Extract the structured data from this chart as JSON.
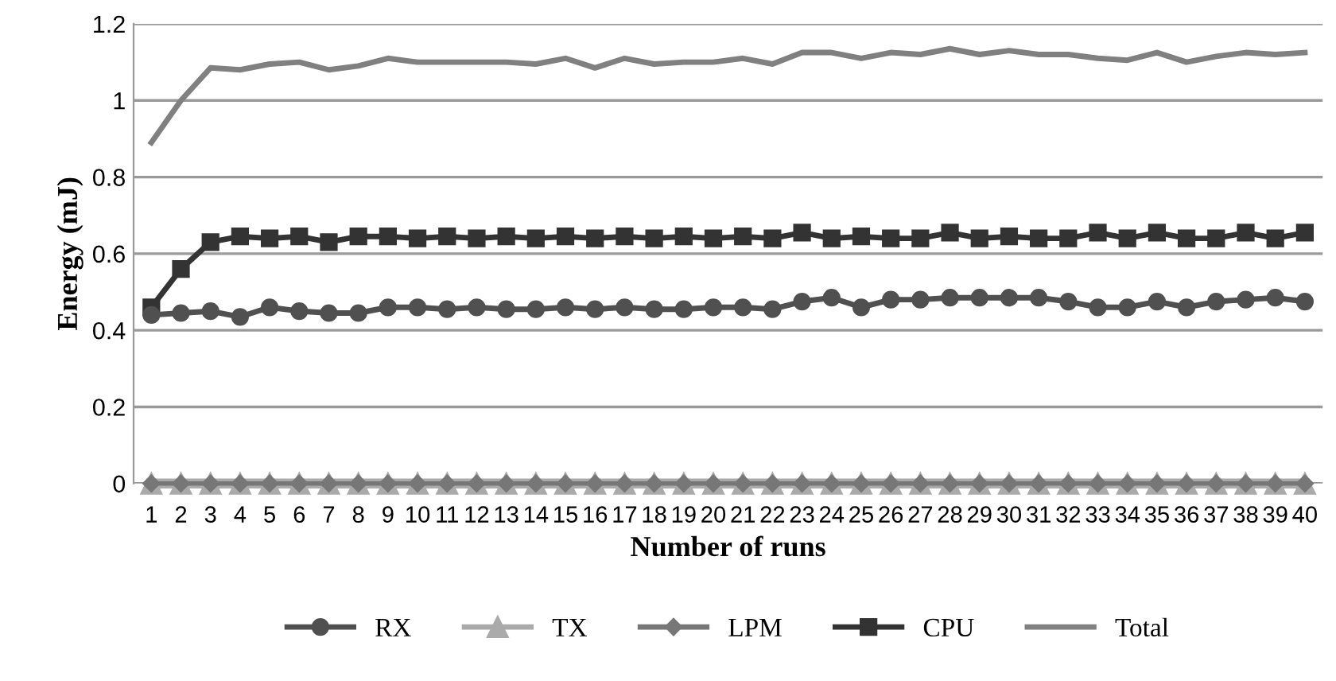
{
  "chart_data": {
    "type": "line",
    "xlabel": "Number of runs",
    "ylabel": "Energy (mJ)",
    "categories": [
      "1",
      "2",
      "3",
      "4",
      "5",
      "6",
      "7",
      "8",
      "9",
      "10",
      "11",
      "12",
      "13",
      "14",
      "15",
      "16",
      "17",
      "18",
      "19",
      "20",
      "21",
      "22",
      "23",
      "24",
      "25",
      "26",
      "27",
      "28",
      "29",
      "30",
      "31",
      "32",
      "33",
      "34",
      "35",
      "36",
      "37",
      "38",
      "39",
      "40"
    ],
    "series": [
      {
        "name": "RX",
        "color": "#505050",
        "marker": "circle",
        "values": [
          0.44,
          0.445,
          0.45,
          0.435,
          0.46,
          0.45,
          0.445,
          0.445,
          0.46,
          0.46,
          0.455,
          0.46,
          0.455,
          0.455,
          0.46,
          0.455,
          0.46,
          0.455,
          0.455,
          0.46,
          0.46,
          0.455,
          0.475,
          0.485,
          0.46,
          0.48,
          0.48,
          0.485,
          0.485,
          0.485,
          0.485,
          0.475,
          0.46,
          0.46,
          0.475,
          0.46,
          0.475,
          0.48,
          0.485,
          0.475
        ]
      },
      {
        "name": "TX",
        "color": "#aaaaaa",
        "marker": "triangle",
        "values": [
          0,
          0,
          0,
          0,
          0,
          0,
          0,
          0,
          0,
          0,
          0,
          0,
          0,
          0,
          0,
          0,
          0,
          0,
          0,
          0,
          0,
          0,
          0,
          0,
          0,
          0,
          0,
          0,
          0,
          0,
          0,
          0,
          0,
          0,
          0,
          0,
          0,
          0,
          0,
          0
        ]
      },
      {
        "name": "LPM",
        "color": "#777777",
        "marker": "diamond",
        "values": [
          0,
          0,
          0,
          0,
          0,
          0,
          0,
          0,
          0,
          0,
          0,
          0,
          0,
          0,
          0,
          0,
          0,
          0,
          0,
          0,
          0,
          0,
          0,
          0,
          0,
          0,
          0,
          0,
          0,
          0,
          0,
          0,
          0,
          0,
          0,
          0,
          0,
          0,
          0,
          0
        ]
      },
      {
        "name": "CPU",
        "color": "#333333",
        "marker": "square",
        "values": [
          0.46,
          0.56,
          0.63,
          0.645,
          0.64,
          0.645,
          0.63,
          0.645,
          0.645,
          0.64,
          0.645,
          0.64,
          0.645,
          0.64,
          0.645,
          0.64,
          0.645,
          0.64,
          0.645,
          0.64,
          0.645,
          0.64,
          0.655,
          0.64,
          0.645,
          0.64,
          0.64,
          0.655,
          0.64,
          0.645,
          0.64,
          0.64,
          0.655,
          0.64,
          0.655,
          0.64,
          0.64,
          0.655,
          0.64,
          0.655
        ]
      },
      {
        "name": "Total",
        "color": "#808080",
        "marker": "none",
        "values": [
          0.89,
          1.0,
          1.085,
          1.08,
          1.095,
          1.1,
          1.08,
          1.09,
          1.11,
          1.1,
          1.1,
          1.1,
          1.1,
          1.095,
          1.11,
          1.085,
          1.11,
          1.095,
          1.1,
          1.1,
          1.11,
          1.095,
          1.125,
          1.125,
          1.11,
          1.125,
          1.12,
          1.135,
          1.12,
          1.13,
          1.12,
          1.12,
          1.11,
          1.105,
          1.125,
          1.1,
          1.115,
          1.125,
          1.12,
          1.125
        ]
      }
    ],
    "ylim": [
      0,
      1.2
    ],
    "yticks": [
      0,
      0.2,
      0.4,
      0.6,
      0.8,
      1,
      1.2
    ],
    "grid": "y",
    "legend": "bottom",
    "line_style": "solid"
  }
}
